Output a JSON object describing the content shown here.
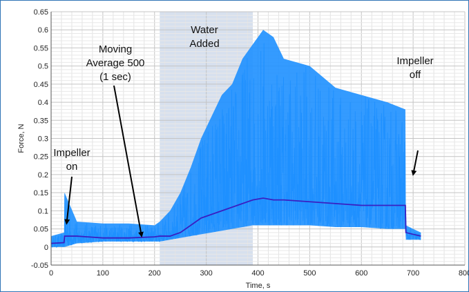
{
  "chart_data": {
    "type": "line",
    "title": "",
    "xlabel": "Time, s",
    "ylabel": "Force, N",
    "xlim": [
      0,
      800
    ],
    "ylim": [
      -0.05,
      0.65
    ],
    "x_ticks": [
      0,
      100,
      200,
      300,
      400,
      500,
      600,
      700,
      800
    ],
    "y_ticks": [
      -0.05,
      0,
      0.05,
      0.1,
      0.15,
      0.2,
      0.25,
      0.3,
      0.35,
      0.4,
      0.45,
      0.5,
      0.55,
      0.6,
      0.65
    ],
    "x_tick_labels": [
      "0",
      "100",
      "200",
      "300",
      "400",
      "500",
      "600",
      "700",
      "800"
    ],
    "y_tick_labels": [
      "-0.05",
      "0",
      "0.05",
      "0.1",
      "0.15",
      "0.2",
      "0.25",
      "0.3",
      "0.35",
      "0.4",
      "0.45",
      "0.5",
      "0.55",
      "0.6",
      "0.65"
    ],
    "grid": true,
    "shaded_region": {
      "x": [
        210,
        390
      ],
      "color": "#c9d6e8"
    },
    "series": [
      {
        "role": "raw-force",
        "color": "#1e90ff",
        "x": [
          0,
          25,
          26,
          50,
          100,
          150,
          200,
          210,
          230,
          250,
          270,
          290,
          310,
          330,
          350,
          370,
          390,
          410,
          430,
          450,
          500,
          550,
          600,
          650,
          685,
          686,
          700,
          715
        ],
        "min": [
          0.0,
          0.0,
          0.0,
          0.01,
          0.015,
          0.015,
          0.015,
          0.015,
          0.02,
          0.025,
          0.03,
          0.035,
          0.04,
          0.045,
          0.05,
          0.055,
          0.06,
          0.06,
          0.06,
          0.06,
          0.06,
          0.055,
          0.055,
          0.05,
          0.05,
          0.02,
          0.02,
          0.02
        ],
        "max": [
          0.03,
          0.04,
          0.15,
          0.07,
          0.065,
          0.065,
          0.06,
          0.07,
          0.1,
          0.15,
          0.22,
          0.3,
          0.36,
          0.42,
          0.45,
          0.52,
          0.56,
          0.6,
          0.58,
          0.52,
          0.5,
          0.44,
          0.42,
          0.4,
          0.38,
          0.06,
          0.05,
          0.04
        ]
      },
      {
        "role": "moving-average",
        "color": "#3a1fc1",
        "x": [
          0,
          25,
          26,
          50,
          100,
          150,
          200,
          210,
          230,
          250,
          270,
          290,
          310,
          330,
          350,
          370,
          390,
          410,
          430,
          450,
          500,
          550,
          600,
          650,
          685,
          686,
          700,
          715
        ],
        "y": [
          0.01,
          0.012,
          0.03,
          0.03,
          0.025,
          0.025,
          0.028,
          0.03,
          0.03,
          0.04,
          0.06,
          0.08,
          0.09,
          0.1,
          0.11,
          0.12,
          0.13,
          0.135,
          0.13,
          0.13,
          0.125,
          0.12,
          0.115,
          0.115,
          0.115,
          0.04,
          0.035,
          0.03
        ]
      }
    ],
    "annotations": [
      {
        "lines": [
          "Impeller",
          "on"
        ],
        "arrow_to": [
          30,
          0.065
        ]
      },
      {
        "lines": [
          "Moving",
          "Average 500",
          "(1 sec)"
        ],
        "arrow_to": [
          175,
          0.03
        ]
      },
      {
        "lines": [
          "Water",
          "Added"
        ]
      },
      {
        "lines": [
          "Impeller",
          "off"
        ],
        "arrow_to": [
          700,
          0.2
        ]
      }
    ]
  }
}
